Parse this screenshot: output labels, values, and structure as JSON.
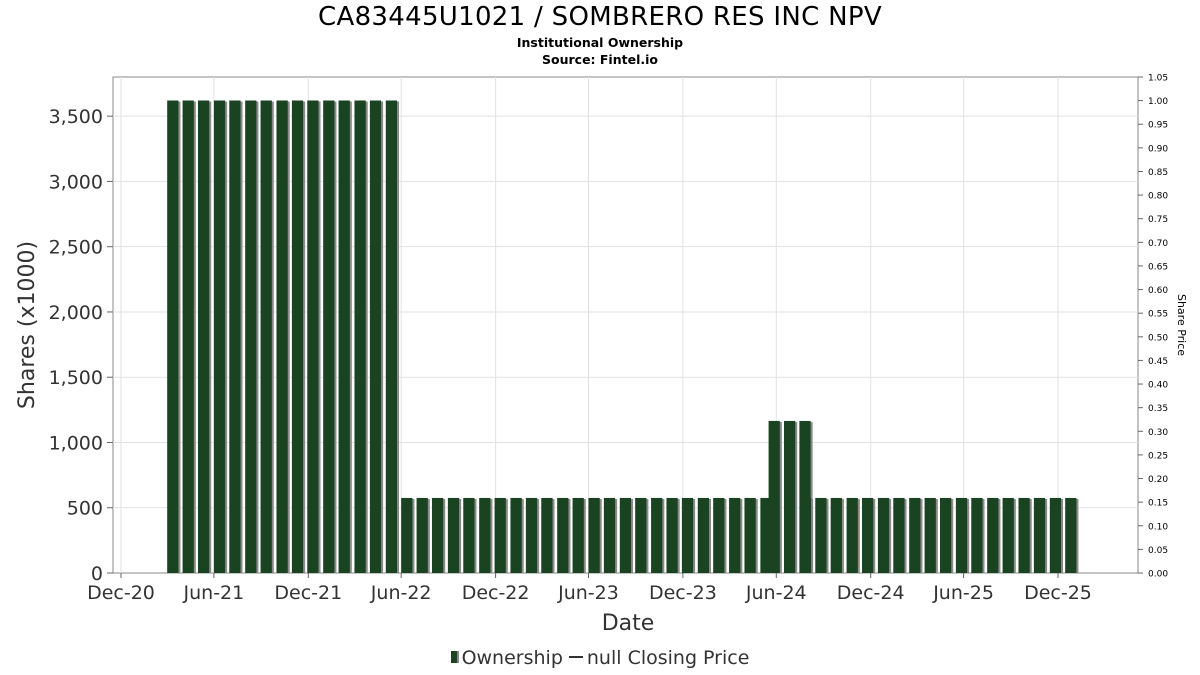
{
  "chart_data": {
    "type": "bar",
    "title": "CA83445U1021 / SOMBRERO RES INC NPV",
    "subtitle": "Institutional Ownership",
    "source": "Source: Fintel.io",
    "xlabel": "Date",
    "ylabel": "Shares (x1000)",
    "y2label": "Share Price",
    "ylim": [
      0,
      3800
    ],
    "y2lim": [
      0,
      1.05
    ],
    "grid": true,
    "legend_position": "bottom",
    "legend": [
      {
        "label": "Ownership",
        "kind": "bar",
        "color": "#1a4321"
      },
      {
        "label": "null Closing Price",
        "kind": "line",
        "color": "#333333"
      }
    ],
    "x_ticks": [
      {
        "label": "Dec-20",
        "date": "2020-12-31"
      },
      {
        "label": "Jun-21",
        "date": "2021-06-30"
      },
      {
        "label": "Dec-21",
        "date": "2021-12-31"
      },
      {
        "label": "Jun-22",
        "date": "2022-06-30"
      },
      {
        "label": "Dec-22",
        "date": "2022-12-31"
      },
      {
        "label": "Jun-23",
        "date": "2023-06-30"
      },
      {
        "label": "Dec-23",
        "date": "2023-12-31"
      },
      {
        "label": "Jun-24",
        "date": "2024-06-30"
      },
      {
        "label": "Dec-24",
        "date": "2024-12-31"
      },
      {
        "label": "Jun-25",
        "date": "2025-06-30"
      },
      {
        "label": "Dec-25",
        "date": "2025-12-31"
      }
    ],
    "y_ticks": [
      {
        "value": 0,
        "label": "0"
      },
      {
        "value": 500,
        "label": "500"
      },
      {
        "value": 1000,
        "label": "1,000"
      },
      {
        "value": 1500,
        "label": "1,500"
      },
      {
        "value": 2000,
        "label": "2,000"
      },
      {
        "value": 2500,
        "label": "2,500"
      },
      {
        "value": 3000,
        "label": "3,000"
      },
      {
        "value": 3500,
        "label": "3,500"
      }
    ],
    "y2_ticks": [
      "0.00",
      "0.05",
      "0.10",
      "0.15",
      "0.20",
      "0.25",
      "0.30",
      "0.35",
      "0.40",
      "0.45",
      "0.50",
      "0.55",
      "0.60",
      "0.65",
      "0.70",
      "0.75",
      "0.80",
      "0.85",
      "0.90",
      "0.95",
      "1.00",
      "1.05"
    ],
    "series": [
      {
        "name": "Ownership",
        "segments": [
          {
            "start": "2021-03-31",
            "count": 15,
            "value": 3620
          },
          {
            "start": "2022-06-30",
            "count": 24,
            "value": 575
          },
          {
            "start": "2024-06-15",
            "count": 3,
            "value": 1165
          },
          {
            "start": "2024-08-15",
            "count": 18,
            "value": 575
          }
        ]
      }
    ]
  }
}
